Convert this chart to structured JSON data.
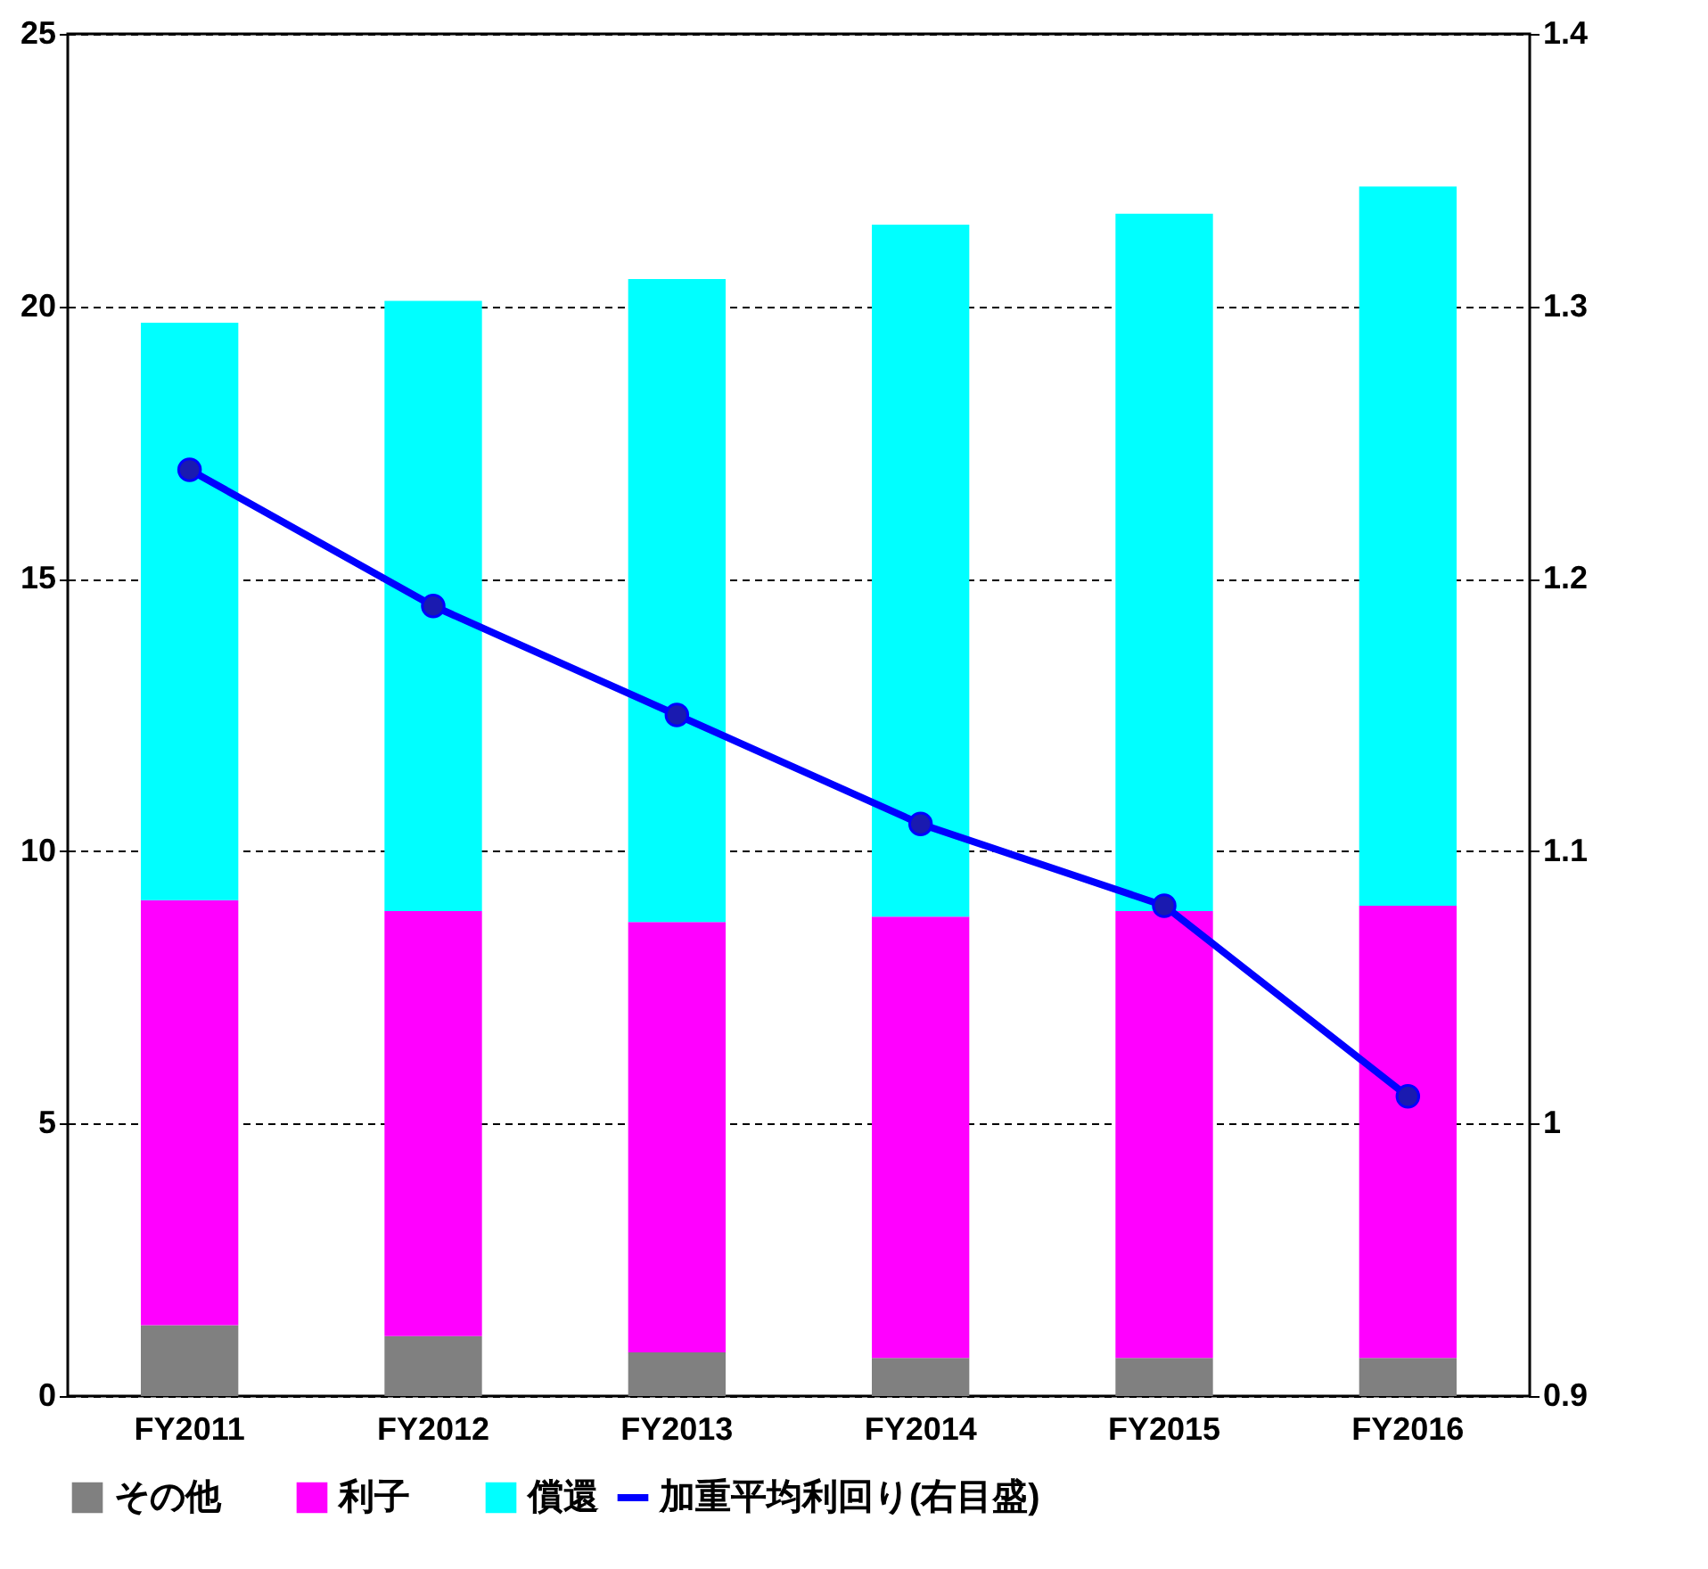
{
  "chart_data": {
    "type": "bar",
    "stacked": true,
    "categories": [
      "FY2011",
      "FY2012",
      "FY2013",
      "FY2014",
      "FY2015",
      "FY2016"
    ],
    "series": [
      {
        "name": "その他",
        "color": "#808080",
        "values": [
          1.3,
          1.1,
          0.8,
          0.7,
          0.7,
          0.7
        ]
      },
      {
        "name": "利子",
        "color": "#ff00ff",
        "values": [
          7.8,
          7.8,
          7.9,
          8.1,
          8.2,
          8.3
        ]
      },
      {
        "name": "償還",
        "color": "#00ffff",
        "values": [
          10.6,
          11.2,
          11.8,
          12.7,
          12.8,
          13.2
        ]
      },
      {
        "name": "加重平均利回り(右目盛)",
        "type": "line",
        "axis": "y2",
        "color": "#0000ff",
        "values": [
          1.24,
          1.19,
          1.15,
          1.11,
          1.08,
          1.01
        ]
      }
    ],
    "ylim": [
      0,
      25
    ],
    "yticks": [
      0,
      5,
      10,
      15,
      20,
      25
    ],
    "y2lim": [
      0.9,
      1.4
    ],
    "y2ticks": [
      0.9,
      1.0,
      1.1,
      1.2,
      1.3,
      1.4
    ],
    "grid": "y",
    "legend": "bottom",
    "marker": "circle",
    "line_style": "solid"
  }
}
